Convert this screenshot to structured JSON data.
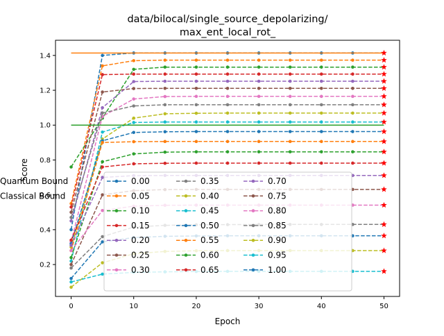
{
  "chart_data": {
    "type": "line",
    "title_lines": [
      "data/bilocal/single_source_depolarizing/",
      "max_ent_local_rot_"
    ],
    "xlabel": "Epoch",
    "ylabel": "Score",
    "xlim": [
      -2.5,
      52.5
    ],
    "ylim": [
      0.017,
      1.487
    ],
    "xticks": [
      0,
      10,
      20,
      30,
      40,
      50
    ],
    "yticks": [
      0.2,
      0.4,
      0.6,
      0.8,
      1.0,
      1.2,
      1.4
    ],
    "xtick_labels": [
      "0",
      "10",
      "20",
      "30",
      "40",
      "50"
    ],
    "ytick_labels": [
      "0.2",
      "0.4",
      "0.6",
      "0.8",
      "1.0",
      "1.2",
      "1.4"
    ],
    "x": [
      0,
      5,
      10,
      15,
      20,
      25,
      30,
      35,
      40,
      45,
      50
    ],
    "series": [
      {
        "name": "0.00",
        "color": "#1f77b4",
        "values": [
          0.4,
          1.4,
          1.414,
          1.414,
          1.414,
          1.414,
          1.414,
          1.414,
          1.414,
          1.414,
          1.414
        ]
      },
      {
        "name": "0.05",
        "color": "#ff7f0e",
        "values": [
          0.55,
          1.34,
          1.37,
          1.373,
          1.373,
          1.373,
          1.373,
          1.373,
          1.373,
          1.373,
          1.373
        ]
      },
      {
        "name": "0.10",
        "color": "#2ca02c",
        "values": [
          0.76,
          1.04,
          1.32,
          1.333,
          1.333,
          1.333,
          1.333,
          1.333,
          1.333,
          1.333,
          1.333
        ]
      },
      {
        "name": "0.15",
        "color": "#d62728",
        "values": [
          0.53,
          1.29,
          1.293,
          1.293,
          1.293,
          1.293,
          1.293,
          1.293,
          1.293,
          1.293,
          1.293
        ]
      },
      {
        "name": "0.20",
        "color": "#9467bd",
        "values": [
          0.45,
          1.1,
          1.25,
          1.252,
          1.252,
          1.252,
          1.252,
          1.252,
          1.252,
          1.252,
          1.252
        ]
      },
      {
        "name": "0.25",
        "color": "#8c564b",
        "values": [
          0.5,
          1.19,
          1.21,
          1.211,
          1.211,
          1.211,
          1.211,
          1.211,
          1.211,
          1.211,
          1.211
        ]
      },
      {
        "name": "0.30",
        "color": "#e377c2",
        "values": [
          0.33,
          1.05,
          1.15,
          1.164,
          1.165,
          1.165,
          1.165,
          1.165,
          1.165,
          1.165,
          1.165
        ]
      },
      {
        "name": "0.35",
        "color": "#7f7f7f",
        "values": [
          0.47,
          1.07,
          1.11,
          1.117,
          1.117,
          1.117,
          1.117,
          1.117,
          1.117,
          1.117,
          1.117
        ]
      },
      {
        "name": "0.40",
        "color": "#bcbd22",
        "values": [
          0.3,
          0.92,
          1.04,
          1.065,
          1.068,
          1.069,
          1.069,
          1.069,
          1.069,
          1.069,
          1.069
        ]
      },
      {
        "name": "0.45",
        "color": "#17becf",
        "values": [
          0.22,
          0.96,
          1.015,
          1.018,
          1.018,
          1.018,
          1.018,
          1.018,
          1.018,
          1.018,
          1.018
        ]
      },
      {
        "name": "0.50",
        "color": "#1f77b4",
        "values": [
          0.32,
          0.91,
          0.958,
          0.962,
          0.963,
          0.963,
          0.963,
          0.963,
          0.963,
          0.963,
          0.963
        ]
      },
      {
        "name": "0.55",
        "color": "#ff7f0e",
        "values": [
          0.28,
          0.9,
          0.905,
          0.906,
          0.906,
          0.906,
          0.906,
          0.906,
          0.906,
          0.906,
          0.906
        ]
      },
      {
        "name": "0.60",
        "color": "#2ca02c",
        "values": [
          0.24,
          0.79,
          0.835,
          0.845,
          0.847,
          0.847,
          0.847,
          0.847,
          0.847,
          0.847,
          0.847
        ]
      },
      {
        "name": "0.65",
        "color": "#d62728",
        "values": [
          0.34,
          0.76,
          0.778,
          0.781,
          0.782,
          0.782,
          0.782,
          0.782,
          0.782,
          0.782,
          0.782
        ]
      },
      {
        "name": "0.70",
        "color": "#9467bd",
        "values": [
          0.31,
          0.7,
          0.71,
          0.711,
          0.711,
          0.711,
          0.711,
          0.711,
          0.711,
          0.711,
          0.711
        ]
      },
      {
        "name": "0.75",
        "color": "#8c564b",
        "values": [
          0.2,
          0.6,
          0.624,
          0.63,
          0.631,
          0.631,
          0.631,
          0.631,
          0.631,
          0.631,
          0.631
        ]
      },
      {
        "name": "0.80",
        "color": "#e377c2",
        "values": [
          0.28,
          0.51,
          0.535,
          0.54,
          0.541,
          0.541,
          0.541,
          0.541,
          0.541,
          0.541,
          0.541
        ]
      },
      {
        "name": "0.85",
        "color": "#7f7f7f",
        "values": [
          0.18,
          0.36,
          0.415,
          0.425,
          0.428,
          0.429,
          0.43,
          0.43,
          0.43,
          0.43,
          0.43
        ]
      },
      {
        "name": "0.90",
        "color": "#bcbd22",
        "values": [
          0.07,
          0.21,
          0.262,
          0.275,
          0.279,
          0.28,
          0.28,
          0.28,
          0.28,
          0.28,
          0.28
        ]
      },
      {
        "name": "0.95",
        "color": "#17becf",
        "values": [
          0.1,
          0.145,
          0.155,
          0.158,
          0.16,
          0.161,
          0.161,
          0.161,
          0.161,
          0.161,
          0.161
        ]
      },
      {
        "name": "1.00",
        "color": "#1f77b4",
        "values": [
          0.12,
          0.33,
          0.355,
          0.362,
          0.364,
          0.365,
          0.365,
          0.365,
          0.365,
          0.365,
          0.365
        ]
      }
    ],
    "bounds": [
      {
        "name": "Quantum Bound",
        "color": "#ff7f0e",
        "value": 1.414
      },
      {
        "name": "Classical Bound",
        "color": "#2ca02c",
        "value": 1.0
      }
    ],
    "final_marker_color": "#ff0000",
    "legend_position": "lower-center"
  }
}
